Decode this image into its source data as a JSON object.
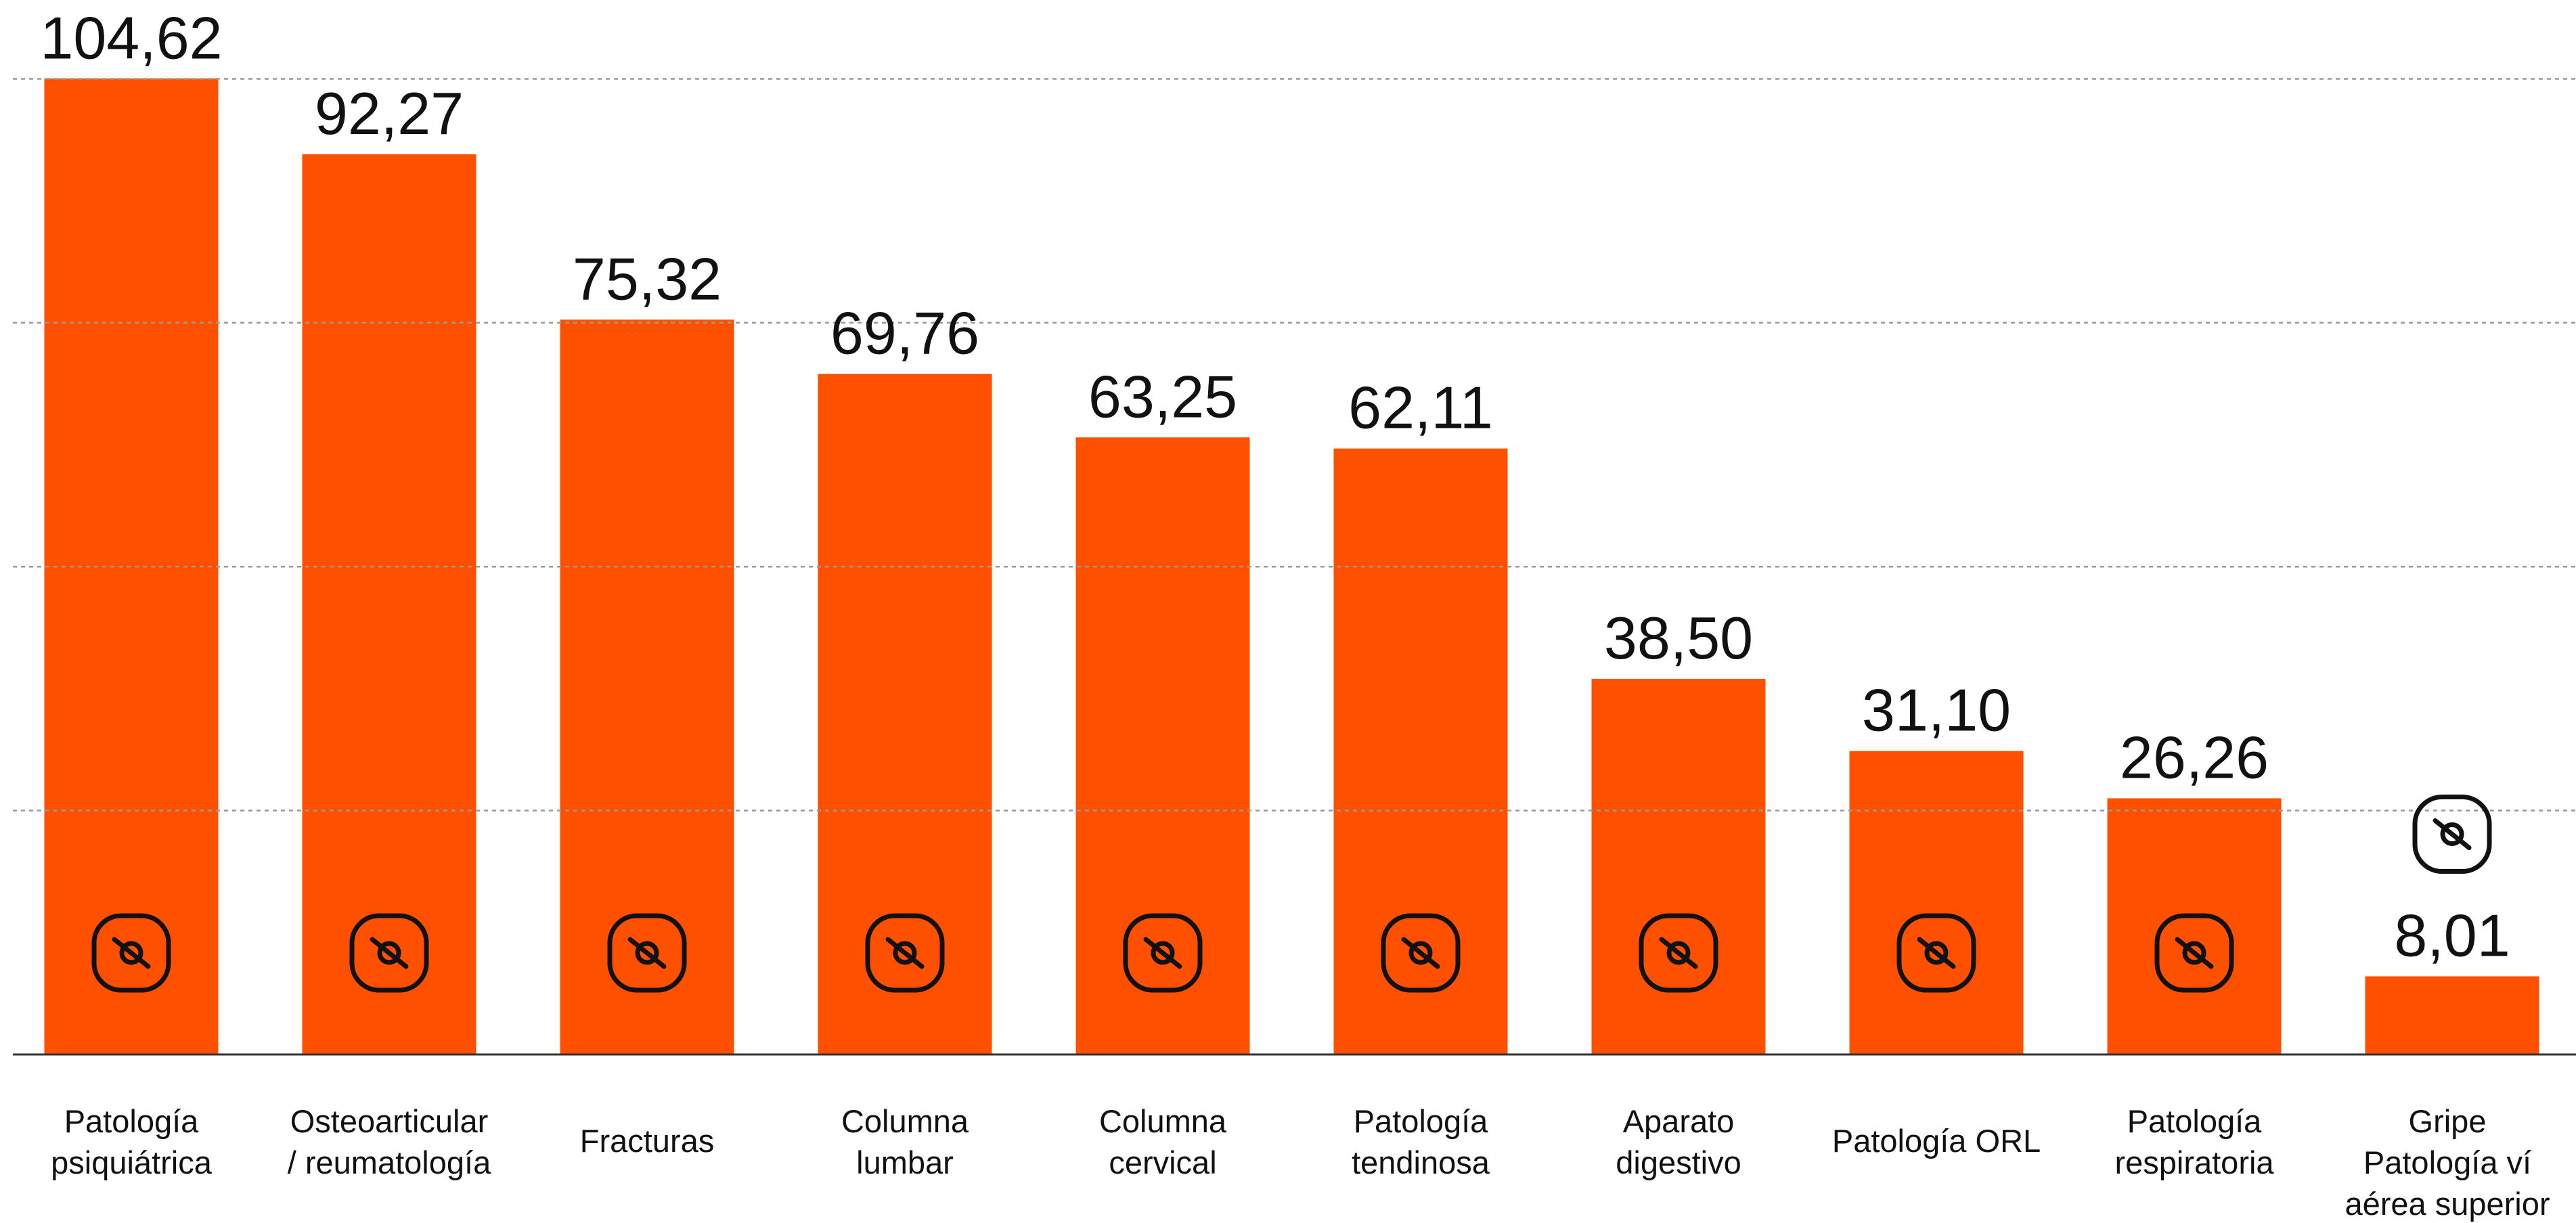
{
  "chart_data": {
    "type": "bar",
    "categories": [
      "Patología\npsiquiátrica",
      "Osteoarticular\n/ reumatología",
      "Fracturas",
      "Columna\nlumbar",
      "Columna\ncervical",
      "Patología\ntendinosa",
      "Aparato\ndigestivo",
      "Patología ORL",
      "Patología\nrespiratoria",
      "Gripe\nPatología ví\naérea superior"
    ],
    "values": [
      104.62,
      92.27,
      75.32,
      69.76,
      63.25,
      62.11,
      38.5,
      31.1,
      26.26,
      8.01
    ],
    "value_labels": [
      "104,62",
      "92,27",
      "75,32",
      "69,76",
      "63,25",
      "62,11",
      "38,50",
      "31,10",
      "26,26",
      "8,01"
    ],
    "color": "#ff5000",
    "ylim": [
      0,
      100
    ],
    "yticks": [
      0,
      25,
      50,
      75,
      100
    ],
    "grid": true
  }
}
